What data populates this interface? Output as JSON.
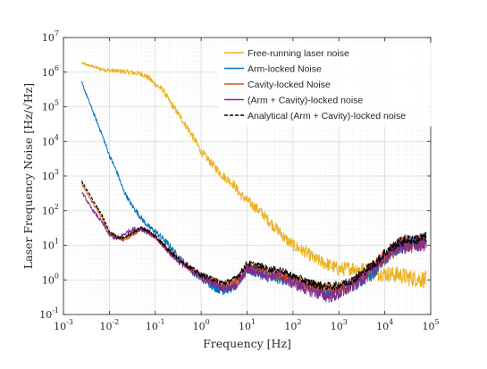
{
  "chart_data": {
    "type": "line",
    "title": "",
    "xlabel": "Frequency [Hz]",
    "ylabel": "Laser Frequency Noise [Hz/√Hz]",
    "xscale": "log",
    "yscale": "log",
    "xlim": [
      0.001,
      100000
    ],
    "ylim": [
      0.1,
      10000000
    ],
    "x_ticks": [
      {
        "value": 0.001,
        "base": "10",
        "exp": "-3"
      },
      {
        "value": 0.01,
        "base": "10",
        "exp": "-2"
      },
      {
        "value": 0.1,
        "base": "10",
        "exp": "-1"
      },
      {
        "value": 1,
        "base": "10",
        "exp": "0"
      },
      {
        "value": 10,
        "base": "10",
        "exp": "1"
      },
      {
        "value": 100,
        "base": "10",
        "exp": "2"
      },
      {
        "value": 1000,
        "base": "10",
        "exp": "3"
      },
      {
        "value": 10000,
        "base": "10",
        "exp": "4"
      },
      {
        "value": 100000,
        "base": "10",
        "exp": "5"
      }
    ],
    "y_ticks": [
      {
        "value": 0.1,
        "base": "10",
        "exp": "-1"
      },
      {
        "value": 1,
        "base": "10",
        "exp": "0"
      },
      {
        "value": 10,
        "base": "10",
        "exp": "1"
      },
      {
        "value": 100,
        "base": "10",
        "exp": "2"
      },
      {
        "value": 1000,
        "base": "10",
        "exp": "3"
      },
      {
        "value": 10000,
        "base": "10",
        "exp": "4"
      },
      {
        "value": 100000,
        "base": "10",
        "exp": "5"
      },
      {
        "value": 1000000,
        "base": "10",
        "exp": "6"
      },
      {
        "value": 10000000,
        "base": "10",
        "exp": "7"
      }
    ],
    "grid": true,
    "minor_grid": true,
    "legend_position": "top-right",
    "series": [
      {
        "name": "Free-running laser noise",
        "color": "#EDB120",
        "style": "solid",
        "x": [
          0.0025,
          0.004,
          0.007,
          0.012,
          0.02,
          0.035,
          0.05,
          0.07,
          0.1,
          0.15,
          0.2,
          0.3,
          0.5,
          0.7,
          1,
          2,
          3,
          5,
          7,
          10,
          20,
          30,
          50,
          70,
          100,
          200,
          300,
          500,
          700,
          1000,
          2000,
          3000,
          5000,
          7000,
          10000,
          20000,
          30000,
          50000,
          80000
        ],
        "y": [
          1800000,
          1500000,
          1200000,
          1100000,
          1050000,
          950000,
          900000,
          700000,
          450000,
          300000,
          150000,
          70000,
          25000,
          12000,
          5000,
          1800,
          1000,
          600,
          300,
          200,
          90,
          50,
          25,
          15,
          10,
          6,
          4,
          3,
          2.5,
          2,
          2.2,
          2,
          1.8,
          1.6,
          1.5,
          1.4,
          1.2,
          1.1,
          1.0
        ]
      },
      {
        "name": "Arm-locked Noise",
        "color": "#0072BD",
        "style": "solid",
        "x": [
          0.0025,
          0.004,
          0.007,
          0.01,
          0.015,
          0.02,
          0.03,
          0.05,
          0.07,
          0.1,
          0.15,
          0.2,
          0.3,
          0.5,
          0.7,
          1,
          1.5,
          2,
          3,
          5,
          7,
          10,
          20,
          30,
          50,
          70,
          100,
          200,
          300,
          500,
          700,
          1000,
          2000,
          3000,
          5000,
          7000,
          10000,
          20000,
          30000,
          50000,
          80000
        ],
        "y": [
          500000,
          100000,
          15000,
          4000,
          1200,
          400,
          150,
          60,
          35,
          25,
          15,
          10,
          5,
          2.5,
          1.6,
          1.1,
          0.8,
          0.6,
          0.5,
          0.6,
          1.0,
          2.0,
          1.5,
          1.2,
          1.1,
          1.0,
          0.9,
          0.7,
          0.6,
          0.5,
          0.45,
          0.5,
          0.7,
          1.0,
          1.5,
          2.5,
          4,
          10,
          12,
          12,
          13
        ]
      },
      {
        "name": "Cavity-locked Noise",
        "color": "#D95319",
        "style": "solid",
        "x": [
          0.0025,
          0.004,
          0.007,
          0.01,
          0.015,
          0.02,
          0.03,
          0.05,
          0.07,
          0.1,
          0.15,
          0.2,
          0.3,
          0.5,
          0.7,
          1,
          2,
          3,
          5,
          7,
          10,
          20,
          30,
          50,
          70,
          100,
          200,
          300,
          500,
          700,
          1000,
          2000,
          3000,
          5000,
          7000,
          10000,
          20000,
          30000,
          50000,
          80000
        ],
        "y": [
          600,
          200,
          60,
          22,
          18,
          14,
          20,
          30,
          25,
          18,
          10,
          7,
          4,
          2.5,
          1.8,
          1.3,
          0.9,
          0.7,
          0.8,
          1.2,
          2.5,
          2.0,
          1.5,
          1.5,
          1.2,
          1.0,
          0.7,
          0.6,
          0.5,
          0.5,
          0.55,
          0.8,
          1.2,
          2.0,
          3.0,
          5.0,
          10,
          11,
          12,
          13
        ]
      },
      {
        "name": "(Arm + Cavity)-locked noise",
        "color": "#7E2F8E",
        "style": "solid",
        "x": [
          0.0025,
          0.004,
          0.007,
          0.01,
          0.015,
          0.02,
          0.03,
          0.05,
          0.07,
          0.1,
          0.15,
          0.2,
          0.3,
          0.5,
          0.7,
          1,
          2,
          3,
          5,
          7,
          10,
          20,
          30,
          50,
          70,
          100,
          200,
          300,
          500,
          700,
          1000,
          2000,
          3000,
          5000,
          7000,
          10000,
          20000,
          30000,
          50000,
          80000
        ],
        "y": [
          350,
          120,
          45,
          20,
          15,
          20,
          28,
          30,
          24,
          17,
          10,
          6.5,
          3.8,
          2.3,
          1.7,
          1.2,
          0.8,
          0.6,
          0.6,
          0.9,
          2.0,
          1.6,
          1.3,
          1.4,
          1.0,
          0.8,
          0.55,
          0.45,
          0.35,
          0.35,
          0.4,
          0.7,
          1.1,
          1.8,
          2.8,
          4.5,
          9,
          10,
          11,
          12
        ]
      },
      {
        "name": "Analytical (Arm + Cavity)-locked noise",
        "color": "#000000",
        "style": "dashed",
        "x": [
          0.0025,
          0.004,
          0.007,
          0.01,
          0.015,
          0.02,
          0.03,
          0.05,
          0.07,
          0.1,
          0.15,
          0.2,
          0.3,
          0.5,
          0.7,
          1,
          2,
          3,
          5,
          7,
          10,
          20,
          30,
          50,
          70,
          100,
          200,
          300,
          500,
          700,
          1000,
          2000,
          3000,
          5000,
          7000,
          10000,
          20000,
          30000,
          50000,
          80000
        ],
        "y": [
          700,
          250,
          70,
          25,
          17,
          16,
          22,
          32,
          26,
          18,
          11,
          7,
          4.2,
          2.6,
          1.9,
          1.4,
          1.0,
          0.8,
          1.0,
          1.5,
          3.0,
          2.5,
          2.0,
          2.0,
          1.6,
          1.3,
          0.9,
          0.75,
          0.65,
          0.65,
          0.7,
          1.0,
          1.5,
          2.5,
          3.5,
          6,
          12,
          14,
          15,
          17
        ]
      }
    ]
  }
}
